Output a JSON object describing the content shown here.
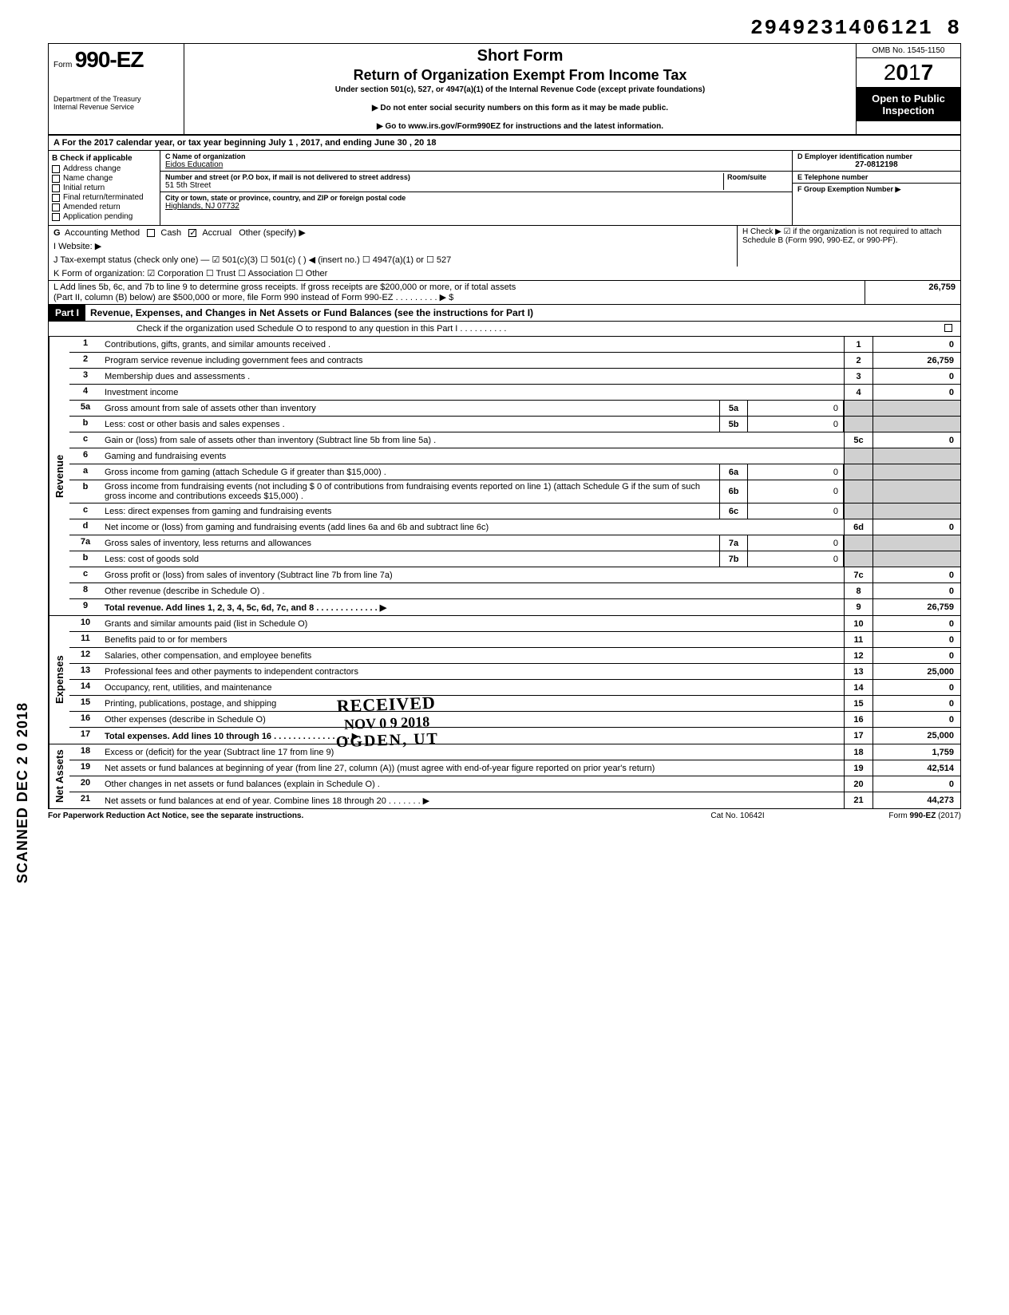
{
  "topNumber": "2949231406121 8",
  "omb": "OMB No. 1545-1150",
  "formNumber": "990-EZ",
  "shortForm": "Short Form",
  "title": "Return of Organization Exempt From Income Tax",
  "subtitle": "Under section 501(c), 527, or 4947(a)(1) of the Internal Revenue Code (except private foundations)",
  "note1": "▶ Do not enter social security numbers on this form as it may be made public.",
  "note2": "▶ Go to www.irs.gov/Form990EZ for instructions and the latest information.",
  "dept": "Department of the Treasury\nInternal Revenue Service",
  "year": "2017",
  "openPublic": "Open to Public Inspection",
  "lineA": "A  For the 2017 calendar year, or tax year beginning                           July 1                  , 2017, and ending                June 30            , 20   18",
  "colB": {
    "header": "B  Check if applicable",
    "items": [
      "Address change",
      "Name change",
      "Initial return",
      "Final return/terminated",
      "Amended return",
      "Application pending"
    ]
  },
  "colC": {
    "nameLabel": "C  Name of organization",
    "name": "Eidos Education",
    "streetLabel": "Number and street (or P.O box, if mail is not delivered to street address)",
    "roomLabel": "Room/suite",
    "street": "51 5th Street",
    "cityLabel": "City or town, state or province, country, and ZIP or foreign postal code",
    "city": "Highlands, NJ  07732"
  },
  "colD": {
    "einLabel": "D Employer identification number",
    "ein": "27-0812198",
    "telLabel": "E  Telephone number",
    "tel": "",
    "groupLabel": "F  Group Exemption Number ▶",
    "group": ""
  },
  "lineG": "G  Accounting Method",
  "gCash": "Cash",
  "gAccrual": "Accrual",
  "gOther": "Other (specify) ▶",
  "lineH": "H  Check ▶ ☑ if the organization is not required to attach Schedule B (Form 990, 990-EZ, or 990-PF).",
  "lineI": "I   Website: ▶",
  "lineJ": "J  Tax-exempt status (check only one) —  ☑ 501(c)(3)     ☐ 501(c) (        ) ◀ (insert no.)  ☐ 4947(a)(1) or   ☐ 527",
  "lineK": "K  Form of organization:   ☑ Corporation     ☐ Trust     ☐ Association     ☐ Other",
  "lineL1": "L  Add lines 5b, 6c, and 7b to line 9 to determine gross receipts. If gross receipts are $200,000 or more, or if total assets",
  "lineL2": "(Part II, column (B) below) are $500,000 or more, file Form 990 instead of Form 990-EZ     .    .    .    .    .    .    .    .    .   ▶   $",
  "lineLVal": "26,759",
  "partI": {
    "label": "Part I",
    "title": "Revenue, Expenses, and Changes in Net Assets or Fund Balances (see the instructions for Part I)",
    "check": "Check if the organization used Schedule O to respond to any question in this Part I  .    .    .    .    .    .    .    .    .    ."
  },
  "revenue": {
    "label": "Revenue",
    "rows": [
      {
        "n": "1",
        "d": "Contributions, gifts, grants, and similar amounts received .",
        "rn": "1",
        "rv": "0"
      },
      {
        "n": "2",
        "d": "Program service revenue including government fees and contracts",
        "rn": "2",
        "rv": "26,759"
      },
      {
        "n": "3",
        "d": "Membership dues and assessments .",
        "rn": "3",
        "rv": "0"
      },
      {
        "n": "4",
        "d": "Investment income",
        "rn": "4",
        "rv": "0"
      },
      {
        "n": "5a",
        "d": "Gross amount from sale of assets other than inventory",
        "mn": "5a",
        "mv": "0"
      },
      {
        "n": "b",
        "d": "Less: cost or other basis and sales expenses .",
        "mn": "5b",
        "mv": "0"
      },
      {
        "n": "c",
        "d": "Gain or (loss) from sale of assets other than inventory (Subtract line 5b from line 5a) .",
        "rn": "5c",
        "rv": "0"
      },
      {
        "n": "6",
        "d": "Gaming and fundraising events"
      },
      {
        "n": "a",
        "d": "Gross income from gaming (attach Schedule G if greater than $15,000) .",
        "mn": "6a",
        "mv": "0"
      },
      {
        "n": "b",
        "d": "Gross income from fundraising events (not including  $                     0 of contributions from fundraising events reported on line 1) (attach Schedule G if the sum of such gross income and contributions exceeds $15,000) .",
        "mn": "6b",
        "mv": "0"
      },
      {
        "n": "c",
        "d": "Less: direct expenses from gaming and fundraising events",
        "mn": "6c",
        "mv": "0"
      },
      {
        "n": "d",
        "d": "Net income or (loss) from gaming and fundraising events (add lines 6a and 6b and subtract line 6c)",
        "rn": "6d",
        "rv": "0"
      },
      {
        "n": "7a",
        "d": "Gross sales of inventory, less returns and allowances",
        "mn": "7a",
        "mv": "0"
      },
      {
        "n": "b",
        "d": "Less: cost of goods sold",
        "mn": "7b",
        "mv": "0"
      },
      {
        "n": "c",
        "d": "Gross profit or (loss) from sales of inventory (Subtract line 7b from line 7a)",
        "rn": "7c",
        "rv": "0"
      },
      {
        "n": "8",
        "d": "Other revenue (describe in Schedule O) .",
        "rn": "8",
        "rv": "0"
      },
      {
        "n": "9",
        "d": "Total revenue. Add lines 1, 2, 3, 4, 5c, 6d, 7c, and 8   .    .    .    .    .    .    .    .    .    .    .    .    .  ▶",
        "rn": "9",
        "rv": "26,759",
        "bold": true
      }
    ]
  },
  "expenses": {
    "label": "Expenses",
    "rows": [
      {
        "n": "10",
        "d": "Grants and similar amounts paid (list in Schedule O)",
        "rn": "10",
        "rv": "0"
      },
      {
        "n": "11",
        "d": "Benefits paid to or for members",
        "rn": "11",
        "rv": "0"
      },
      {
        "n": "12",
        "d": "Salaries, other compensation, and employee benefits",
        "rn": "12",
        "rv": "0"
      },
      {
        "n": "13",
        "d": "Professional fees and other payments to independent contractors",
        "rn": "13",
        "rv": "25,000"
      },
      {
        "n": "14",
        "d": "Occupancy, rent, utilities, and maintenance",
        "rn": "14",
        "rv": "0"
      },
      {
        "n": "15",
        "d": "Printing, publications, postage, and shipping",
        "rn": "15",
        "rv": "0"
      },
      {
        "n": "16",
        "d": "Other expenses (describe in Schedule O)",
        "rn": "16",
        "rv": "0"
      },
      {
        "n": "17",
        "d": "Total expenses. Add lines 10 through 16   .    .    .    .    .    .    .    .    .    .    .    .    .    .    .    .  ▶",
        "rn": "17",
        "rv": "25,000",
        "bold": true
      }
    ]
  },
  "netassets": {
    "label": "Net Assets",
    "rows": [
      {
        "n": "18",
        "d": "Excess or (deficit) for the year (Subtract line 17 from line 9)",
        "rn": "18",
        "rv": "1,759"
      },
      {
        "n": "19",
        "d": "Net assets or fund balances at beginning of year (from line 27, column (A)) (must agree with end-of-year figure reported on prior year's return)",
        "rn": "19",
        "rv": "42,514"
      },
      {
        "n": "20",
        "d": "Other changes in net assets or fund balances (explain in Schedule O) .",
        "rn": "20",
        "rv": "0"
      },
      {
        "n": "21",
        "d": "Net assets or fund balances at end of year. Combine lines 18 through 20   .    .    .    .    .    .    .  ▶",
        "rn": "21",
        "rv": "44,273"
      }
    ]
  },
  "footer": {
    "left": "For Paperwork Reduction Act Notice, see the separate instructions.",
    "mid": "Cat  No. 10642I",
    "right": "Form 990-EZ  (2017)"
  },
  "scanned": "SCANNED DEC 2 0 2018",
  "stamp": {
    "r1": "RECEIVED",
    "r2": "NOV 0 9 2018",
    "r3": "OGDEN, UT"
  }
}
